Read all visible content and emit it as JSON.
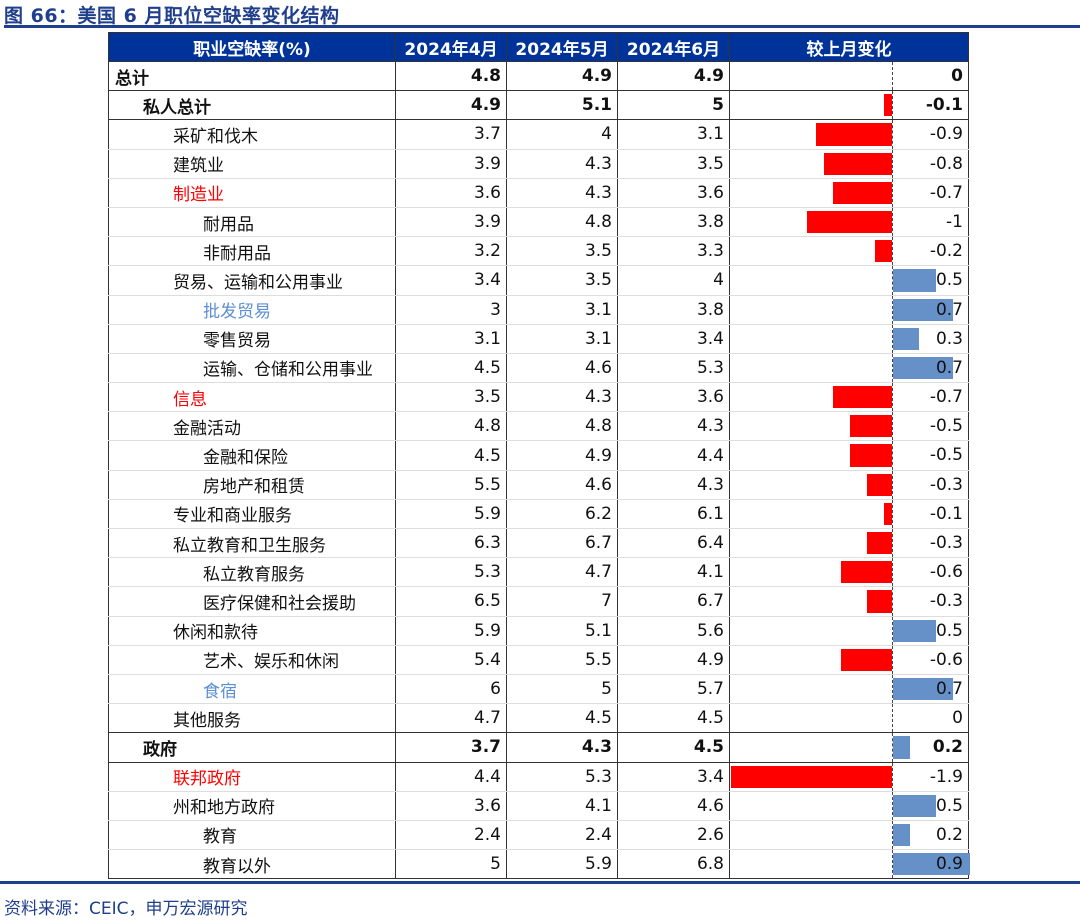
{
  "title": "图 66：美国 6 月职位空缺率变化结构",
  "source": "资料来源：CEIC，申万宏源研究",
  "colors": {
    "negative": "#FF0000",
    "positive": "#6690C8",
    "header": "#003399",
    "highlight_red": "#FF0000",
    "highlight_blue": "#5B8FD6"
  },
  "headers": [
    "职业空缺率(%)",
    "2024年4月",
    "2024年5月",
    "2024年6月",
    "较上月变化"
  ],
  "rows": [
    {
      "label": "总计",
      "level": 0,
      "bold": true,
      "apr": "4.8",
      "may": "4.9",
      "jun": "4.9",
      "change": "0"
    },
    {
      "label": "私人总计",
      "level": 1,
      "bold": true,
      "apr": "4.9",
      "may": "5.1",
      "jun": "5",
      "change": "-0.1"
    },
    {
      "label": "采矿和伐木",
      "level": 2,
      "apr": "3.7",
      "may": "4",
      "jun": "3.1",
      "change": "-0.9"
    },
    {
      "label": "建筑业",
      "level": 2,
      "apr": "3.9",
      "may": "4.3",
      "jun": "3.5",
      "change": "-0.8"
    },
    {
      "label": "制造业",
      "level": 2,
      "color": "red",
      "apr": "3.6",
      "may": "4.3",
      "jun": "3.6",
      "change": "-0.7"
    },
    {
      "label": "耐用品",
      "level": 3,
      "apr": "3.9",
      "may": "4.8",
      "jun": "3.8",
      "change": "-1"
    },
    {
      "label": "非耐用品",
      "level": 3,
      "apr": "3.2",
      "may": "3.5",
      "jun": "3.3",
      "change": "-0.2"
    },
    {
      "label": "贸易、运输和公用事业",
      "level": 2,
      "apr": "3.4",
      "may": "3.5",
      "jun": "4",
      "change": "0.5"
    },
    {
      "label": "批发贸易",
      "level": 3,
      "color": "blue",
      "apr": "3",
      "may": "3.1",
      "jun": "3.8",
      "change": "0.7"
    },
    {
      "label": "零售贸易",
      "level": 3,
      "apr": "3.1",
      "may": "3.1",
      "jun": "3.4",
      "change": "0.3"
    },
    {
      "label": "运输、仓储和公用事业",
      "level": 3,
      "apr": "4.5",
      "may": "4.6",
      "jun": "5.3",
      "change": "0.7"
    },
    {
      "label": "信息",
      "level": 2,
      "color": "red",
      "apr": "3.5",
      "may": "4.3",
      "jun": "3.6",
      "change": "-0.7"
    },
    {
      "label": "金融活动",
      "level": 2,
      "apr": "4.8",
      "may": "4.8",
      "jun": "4.3",
      "change": "-0.5"
    },
    {
      "label": "金融和保险",
      "level": 3,
      "apr": "4.5",
      "may": "4.9",
      "jun": "4.4",
      "change": "-0.5"
    },
    {
      "label": "房地产和租赁",
      "level": 3,
      "apr": "5.5",
      "may": "4.6",
      "jun": "4.3",
      "change": "-0.3"
    },
    {
      "label": "专业和商业服务",
      "level": 2,
      "apr": "5.9",
      "may": "6.2",
      "jun": "6.1",
      "change": "-0.1"
    },
    {
      "label": "私立教育和卫生服务",
      "level": 2,
      "apr": "6.3",
      "may": "6.7",
      "jun": "6.4",
      "change": "-0.3"
    },
    {
      "label": "私立教育服务",
      "level": 3,
      "apr": "5.3",
      "may": "4.7",
      "jun": "4.1",
      "change": "-0.6"
    },
    {
      "label": "医疗保健和社会援助",
      "level": 3,
      "apr": "6.5",
      "may": "7",
      "jun": "6.7",
      "change": "-0.3"
    },
    {
      "label": "休闲和款待",
      "level": 2,
      "apr": "5.9",
      "may": "5.1",
      "jun": "5.6",
      "change": "0.5"
    },
    {
      "label": "艺术、娱乐和休闲",
      "level": 3,
      "apr": "5.4",
      "may": "5.5",
      "jun": "4.9",
      "change": "-0.6"
    },
    {
      "label": "食宿",
      "level": 3,
      "color": "blue",
      "apr": "6",
      "may": "5",
      "jun": "5.7",
      "change": "0.7"
    },
    {
      "label": "其他服务",
      "level": 2,
      "apr": "4.7",
      "may": "4.5",
      "jun": "4.5",
      "change": "0"
    },
    {
      "label": "政府",
      "level": 1,
      "bold": true,
      "apr": "3.7",
      "may": "4.3",
      "jun": "4.5",
      "change": "0.2"
    },
    {
      "label": "联邦政府",
      "level": 2,
      "color": "red",
      "apr": "4.4",
      "may": "5.3",
      "jun": "3.4",
      "change": "-1.9"
    },
    {
      "label": "州和地方政府",
      "level": 2,
      "apr": "3.6",
      "may": "4.1",
      "jun": "4.6",
      "change": "0.5"
    },
    {
      "label": "教育",
      "level": 3,
      "apr": "2.4",
      "may": "2.4",
      "jun": "2.6",
      "change": "0.2"
    },
    {
      "label": "教育以外",
      "level": 3,
      "apr": "5",
      "may": "5.9",
      "jun": "6.8",
      "change": "0.9"
    }
  ]
}
